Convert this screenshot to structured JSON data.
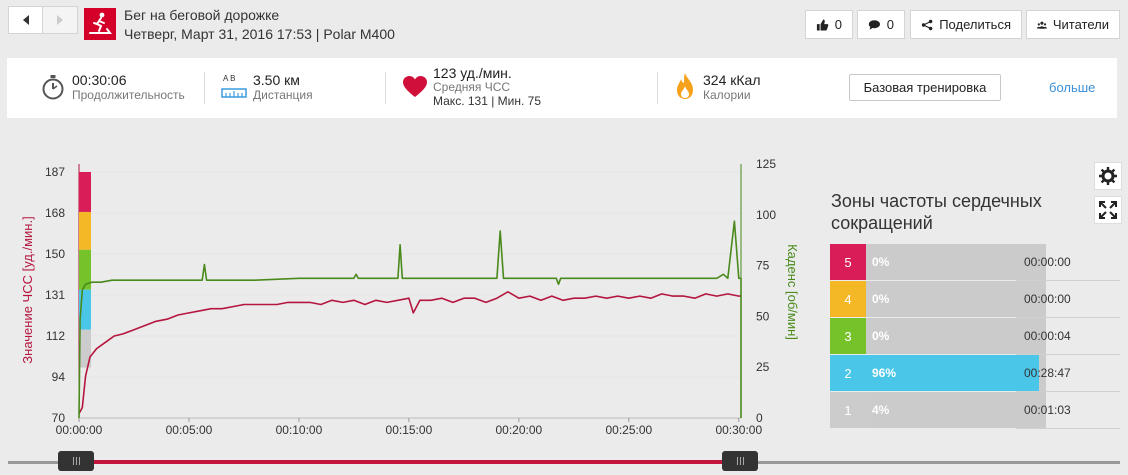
{
  "header": {
    "title": "Бег на беговой дорожке",
    "subtitle": "Четверг, Март 31, 2016 17:53 | Polar M400",
    "sport_icon": "treadmill-icon",
    "likes_count": "0",
    "comments_count": "0",
    "share_label": "Поделиться",
    "readers_label": "Читатели"
  },
  "summary": {
    "duration_value": "00:30:06",
    "duration_label": "Продолжительность",
    "distance_ab": "A  B",
    "distance_value": "3.50 км",
    "distance_label": "Дистанция",
    "hr_value": "123 уд./мин.",
    "hr_label": "Средняя ЧСС",
    "hr_minmax": "Макс. 131  |  Мин. 75",
    "calories_value": "324 кКал",
    "calories_label": "Калории",
    "base_training_label": "Базовая тренировка",
    "more_label": "больше"
  },
  "chart_data": {
    "type": "line",
    "x_ticks": [
      "00:00:00",
      "00:05:00",
      "00:10:00",
      "00:15:00",
      "00:20:00",
      "00:25:00",
      "00:30:00"
    ],
    "x_range_minutes": [
      0,
      30.1
    ],
    "y_left": {
      "label": "Значение ЧСС [уд./мин.]",
      "ticks": [
        "187",
        "168",
        "150",
        "131",
        "112",
        "94",
        "70"
      ],
      "range": [
        70,
        187
      ]
    },
    "y_right": {
      "label": "Каденс [об/мин]",
      "ticks": [
        "125",
        "100",
        "75",
        "50",
        "25",
        "0"
      ],
      "range": [
        0,
        125
      ]
    },
    "zone_band_colors": [
      "#d91d59",
      "#f4b726",
      "#76c22b",
      "#4ac6e9",
      "#cccccc"
    ],
    "zone_band_bounds": [
      [
        168,
        187
      ],
      [
        150,
        168
      ],
      [
        131,
        150
      ],
      [
        112,
        131
      ],
      [
        94,
        112
      ]
    ],
    "series": [
      {
        "name": "",
        "axis": "left",
        "color": "#b5163e",
        "points": [
          [
            0,
            72
          ],
          [
            0.15,
            75
          ],
          [
            0.3,
            90
          ],
          [
            0.5,
            99
          ],
          [
            0.8,
            103
          ],
          [
            1.2,
            106
          ],
          [
            1.6,
            109
          ],
          [
            2,
            110
          ],
          [
            2.5,
            112
          ],
          [
            3,
            114
          ],
          [
            3.5,
            116
          ],
          [
            4,
            117
          ],
          [
            4.5,
            119
          ],
          [
            5,
            120
          ],
          [
            5.5,
            121
          ],
          [
            6,
            122
          ],
          [
            6.5,
            122
          ],
          [
            7,
            123
          ],
          [
            7.5,
            124
          ],
          [
            8,
            124
          ],
          [
            8.5,
            124
          ],
          [
            9,
            124
          ],
          [
            9.5,
            125
          ],
          [
            10,
            125
          ],
          [
            10.5,
            125
          ],
          [
            11,
            124
          ],
          [
            11.5,
            126
          ],
          [
            12,
            125
          ],
          [
            12.5,
            126
          ],
          [
            13,
            124
          ],
          [
            13.5,
            126
          ],
          [
            14,
            125
          ],
          [
            14.5,
            126
          ],
          [
            15,
            127
          ],
          [
            15.2,
            120
          ],
          [
            15.5,
            126
          ],
          [
            16,
            126
          ],
          [
            16.5,
            127
          ],
          [
            17,
            125
          ],
          [
            17.5,
            127
          ],
          [
            18,
            127
          ],
          [
            18.5,
            125
          ],
          [
            19,
            127
          ],
          [
            19.5,
            130
          ],
          [
            20,
            127
          ],
          [
            20.5,
            128
          ],
          [
            21,
            126
          ],
          [
            21.5,
            128
          ],
          [
            22,
            126
          ],
          [
            22.5,
            127
          ],
          [
            23,
            127
          ],
          [
            23.5,
            128
          ],
          [
            24,
            127
          ],
          [
            24.5,
            128
          ],
          [
            25,
            127
          ],
          [
            25.5,
            128
          ],
          [
            26,
            127
          ],
          [
            26.5,
            129
          ],
          [
            27,
            128
          ],
          [
            27.5,
            128
          ],
          [
            28,
            127
          ],
          [
            28.5,
            129
          ],
          [
            29,
            128
          ],
          [
            29.5,
            129
          ],
          [
            30,
            128
          ],
          [
            30.1,
            128
          ]
        ]
      },
      {
        "name": "",
        "axis": "right",
        "color": "#4a8a1c",
        "points": [
          [
            0,
            0
          ],
          [
            0.05,
            50
          ],
          [
            0.15,
            65
          ],
          [
            0.3,
            68
          ],
          [
            0.6,
            69
          ],
          [
            1,
            69
          ],
          [
            1.5,
            70
          ],
          [
            2,
            70
          ],
          [
            3,
            70
          ],
          [
            4,
            70
          ],
          [
            5,
            70
          ],
          [
            5.6,
            70
          ],
          [
            5.7,
            78
          ],
          [
            5.8,
            70
          ],
          [
            8,
            70
          ],
          [
            10,
            71
          ],
          [
            12,
            71
          ],
          [
            12.5,
            71
          ],
          [
            12.6,
            73
          ],
          [
            12.7,
            71
          ],
          [
            14,
            71
          ],
          [
            14.5,
            71
          ],
          [
            14.6,
            88
          ],
          [
            14.7,
            71
          ],
          [
            16,
            71
          ],
          [
            18,
            71
          ],
          [
            19,
            71
          ],
          [
            19.15,
            95
          ],
          [
            19.3,
            71
          ],
          [
            21,
            71
          ],
          [
            21.7,
            71
          ],
          [
            21.8,
            68
          ],
          [
            21.9,
            71
          ],
          [
            24,
            71
          ],
          [
            26,
            71
          ],
          [
            28,
            71
          ],
          [
            29,
            71
          ],
          [
            29.3,
            73
          ],
          [
            29.5,
            71
          ],
          [
            29.8,
            100
          ],
          [
            30.0,
            71
          ],
          [
            30.1,
            71
          ],
          [
            30.1,
            0
          ]
        ]
      }
    ],
    "grid": true
  },
  "tools": {
    "settings_icon": "gear-icon",
    "fullscreen_icon": "expand-icon"
  },
  "zones": {
    "title": "Зоны частоты сердечных сокращений",
    "rows": [
      {
        "num": "5",
        "color": "#d91d59",
        "fraction": 0.0,
        "pct": "0%",
        "time": "00:00:00"
      },
      {
        "num": "4",
        "color": "#f4b726",
        "fraction": 0.0,
        "pct": "0%",
        "time": "00:00:00"
      },
      {
        "num": "3",
        "color": "#76c22b",
        "fraction": 0.0,
        "pct": "0%",
        "time": "00:00:04"
      },
      {
        "num": "2",
        "color": "#4ac6e9",
        "fraction": 0.96,
        "pct": "96%",
        "time": "00:28:47"
      },
      {
        "num": "1",
        "color": "#cccccc",
        "fraction": 0.04,
        "pct": "4%",
        "time": "00:01:03"
      }
    ]
  },
  "slider": {
    "start_fraction": 0.0,
    "end_fraction": 1.0
  }
}
